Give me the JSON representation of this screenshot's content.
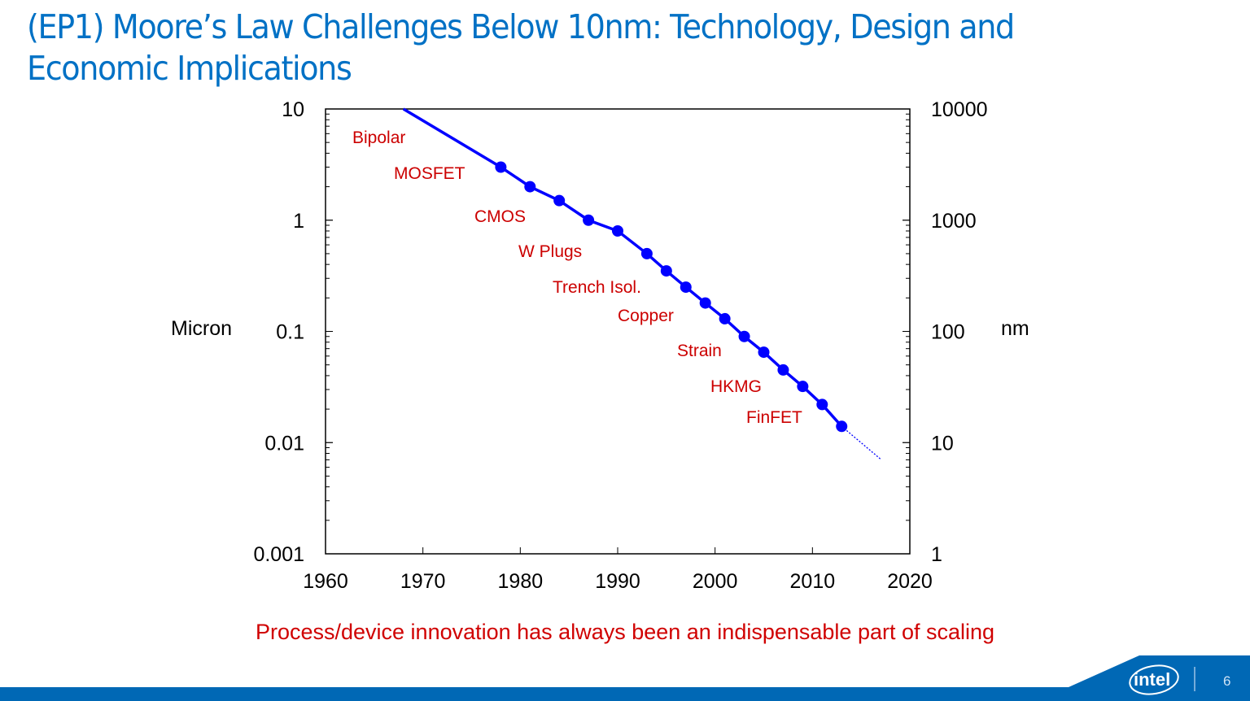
{
  "slide": {
    "title": "(EP1) Moore’s Law Challenges Below 10nm: Technology, Design and Economic Implications",
    "caption": "Process/device innovation has always been an indispensable part of scaling",
    "page_number": "6",
    "logo": "intel",
    "colors": {
      "title": "#0071c5",
      "caption": "#d00000",
      "footer": "#0068b5"
    }
  },
  "chart_data": {
    "type": "line",
    "title": "",
    "xlabel": "",
    "ylabel": "Micron",
    "ylabel_right": "nm",
    "xlim": [
      1960,
      2020
    ],
    "ylim": [
      0.001,
      10
    ],
    "ylim_right": [
      1,
      10000
    ],
    "yscale": "log",
    "grid": false,
    "x_ticks": [
      "1960",
      "1970",
      "1980",
      "1990",
      "2000",
      "2010",
      "2020"
    ],
    "y_ticks": [
      "10",
      "1",
      "0.1",
      "0.01",
      "0.001"
    ],
    "y_ticks_right": [
      "10000",
      "1000",
      "100",
      "10",
      "1"
    ],
    "series_color": "#0000ff",
    "annotation_color": "#cc0000",
    "trend_line": {
      "x": [
        1968,
        2013
      ],
      "y": [
        10,
        0.014
      ]
    },
    "projection": {
      "x": [
        2013,
        2017
      ],
      "y": [
        0.014,
        0.0071
      ],
      "style": "dotted"
    },
    "points": {
      "x": [
        1978,
        1981,
        1984,
        1987,
        1990,
        1993,
        1995,
        1997,
        1999,
        2001,
        2003,
        2005,
        2007,
        2009,
        2011,
        2013
      ],
      "y": [
        3.0,
        2.0,
        1.5,
        1.0,
        0.8,
        0.5,
        0.35,
        0.25,
        0.18,
        0.13,
        0.09,
        0.065,
        0.045,
        0.032,
        0.022,
        0.014
      ]
    },
    "annotations": [
      "Bipolar",
      "MOSFET",
      "CMOS",
      "W Plugs",
      "Trench Isol.",
      "Copper",
      "Strain",
      "HKMG",
      "FinFET"
    ]
  }
}
